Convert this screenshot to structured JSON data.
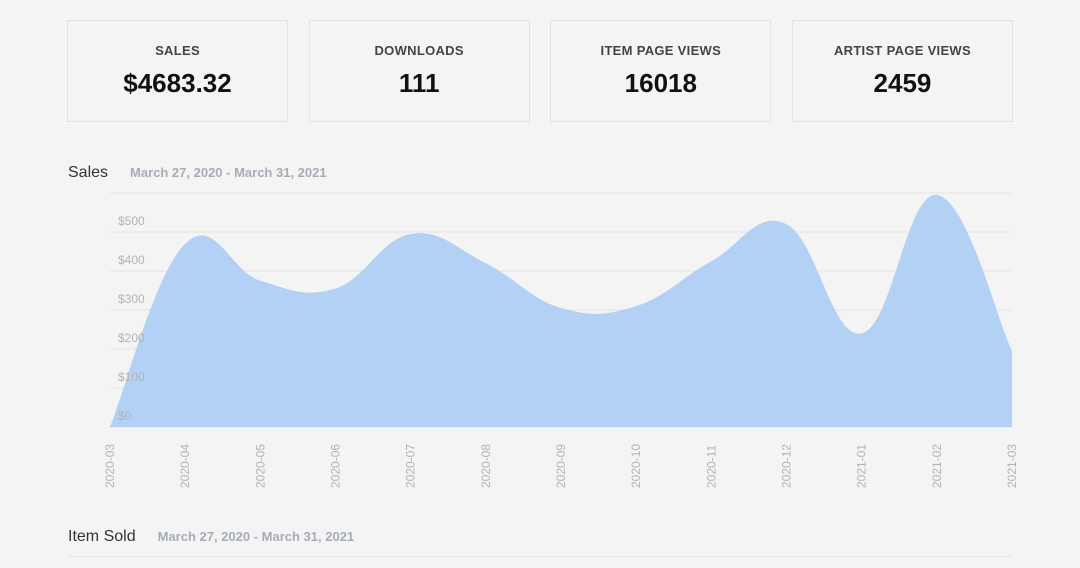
{
  "stats": [
    {
      "label": "SALES",
      "value": "$4683.32"
    },
    {
      "label": "DOWNLOADS",
      "value": "111"
    },
    {
      "label": "ITEM PAGE VIEWS",
      "value": "16018"
    },
    {
      "label": "ARTIST PAGE VIEWS",
      "value": "2459"
    }
  ],
  "sales_section": {
    "title": "Sales",
    "range": "March 27, 2020 - March 31, 2021"
  },
  "items_section": {
    "title": "Item Sold",
    "range": "March 27, 2020 - March 31, 2021"
  },
  "colors": {
    "area_fill": "#b3d1f5",
    "grid": "#e3e3e3"
  },
  "chart_data": {
    "type": "area",
    "x": [
      "2020-03",
      "2020-04",
      "2020-05",
      "2020-06",
      "2020-07",
      "2020-08",
      "2020-09",
      "2020-10",
      "2020-11",
      "2020-12",
      "2021-01",
      "2021-02",
      "2021-03"
    ],
    "values": [
      0,
      470,
      375,
      355,
      495,
      420,
      305,
      310,
      425,
      520,
      240,
      595,
      195
    ],
    "y_ticks": [
      "$0",
      "$100",
      "$200",
      "$300",
      "$400",
      "$500"
    ],
    "x_tick_labels": [
      "2020-03",
      "2020-04",
      "2020-05",
      "2020-06",
      "2020-07",
      "2020-08",
      "2020-09",
      "2020-10",
      "2020-11",
      "2020-12",
      "2021-01",
      "2021-02",
      "2021-03"
    ],
    "ylim": [
      0,
      600
    ],
    "grid": true,
    "xlabel": "",
    "ylabel": ""
  }
}
